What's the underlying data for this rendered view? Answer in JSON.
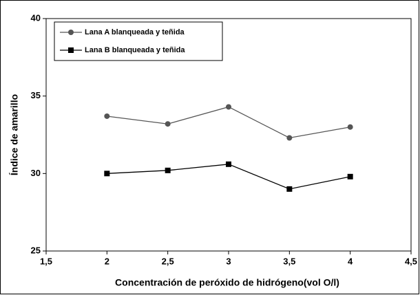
{
  "chart_data": {
    "type": "line",
    "xlabel": "Concentración de peróxido de hidrógeno(vol O/l)",
    "ylabel": "Índice de amarillo",
    "x": [
      2,
      2.5,
      3,
      3.5,
      4
    ],
    "series": [
      {
        "name": "Lana A blanqueada y teñida",
        "color": "#555555",
        "marker": "circle",
        "values": [
          33.7,
          33.2,
          34.3,
          32.3,
          33.0
        ]
      },
      {
        "name": "Lana B blanqueada y teñida",
        "color": "#000000",
        "marker": "square",
        "values": [
          30.0,
          30.2,
          30.6,
          29.0,
          29.8
        ]
      }
    ],
    "xlim": [
      1.5,
      4.5
    ],
    "xticks": [
      {
        "value": 1.5,
        "label": "1,5"
      },
      2,
      {
        "value": 2.5,
        "label": "2,5"
      },
      3,
      {
        "value": 3.5,
        "label": "3,5"
      },
      4,
      {
        "value": 4.5,
        "label": "4,5"
      }
    ],
    "ylim": [
      25,
      40
    ],
    "yticks": [
      25,
      30,
      35,
      40
    ],
    "grid": false,
    "legend": "upper left"
  }
}
